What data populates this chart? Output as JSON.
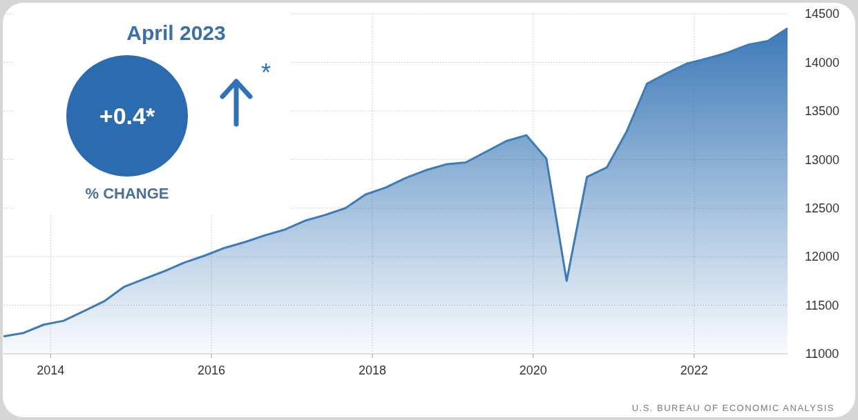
{
  "chart_data": {
    "type": "area",
    "x": [
      "2013-06",
      "2013-09",
      "2013-12",
      "2014-03",
      "2014-06",
      "2014-09",
      "2014-12",
      "2015-03",
      "2015-06",
      "2015-09",
      "2015-12",
      "2016-03",
      "2016-06",
      "2016-09",
      "2016-12",
      "2017-03",
      "2017-06",
      "2017-09",
      "2017-12",
      "2018-03",
      "2018-06",
      "2018-09",
      "2018-12",
      "2019-03",
      "2019-06",
      "2019-09",
      "2019-12",
      "2020-03",
      "2020-06",
      "2020-09",
      "2020-12",
      "2021-03",
      "2021-06",
      "2021-09",
      "2021-12",
      "2022-03",
      "2022-06",
      "2022-09",
      "2022-12",
      "2023-03"
    ],
    "series": [
      {
        "color": "#3d7ab8",
        "values": [
          11180,
          11215,
          11300,
          11340,
          11440,
          11540,
          11690,
          11770,
          11850,
          11940,
          12010,
          12090,
          12150,
          12220,
          12280,
          12370,
          12430,
          12500,
          12640,
          12710,
          12810,
          12890,
          12950,
          12970,
          13080,
          13190,
          13250,
          13010,
          11750,
          12820,
          12920,
          13290,
          13780,
          13890,
          13990,
          14040,
          14100,
          14180,
          14220,
          14350
        ]
      }
    ],
    "xlim": [
      "2013-06",
      "2023-03"
    ],
    "xticks": [
      "2014",
      "2016",
      "2018",
      "2020",
      "2022"
    ],
    "ylim": [
      11000,
      14500
    ],
    "yticks": [
      11000,
      11500,
      12000,
      12500,
      13000,
      13500,
      14000,
      14500
    ],
    "grid": true,
    "annotations": [
      "April 2023",
      "+0.4*",
      "% CHANGE",
      "*",
      "U.S. BUREAU OF ECONOMIC ANALYSIS"
    ]
  }
}
